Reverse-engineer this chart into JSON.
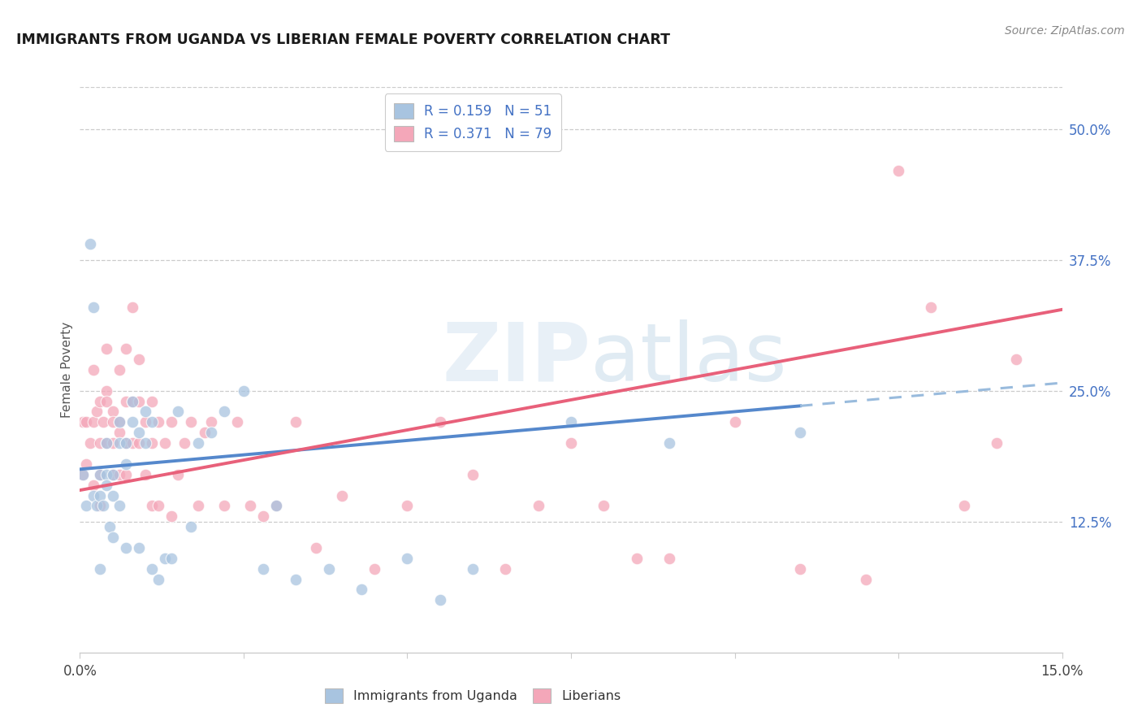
{
  "title": "IMMIGRANTS FROM UGANDA VS LIBERIAN FEMALE POVERTY CORRELATION CHART",
  "source": "Source: ZipAtlas.com",
  "ylabel": "Female Poverty",
  "ytick_labels": [
    "12.5%",
    "25.0%",
    "37.5%",
    "50.0%"
  ],
  "ytick_values": [
    0.125,
    0.25,
    0.375,
    0.5
  ],
  "xlim": [
    0.0,
    0.15
  ],
  "ylim": [
    0.0,
    0.54
  ],
  "color_uganda": "#a8c4e0",
  "color_liberian": "#f4a7b9",
  "color_line_uganda": "#5588cc",
  "color_line_liberian": "#e8607a",
  "color_line_dashed": "#99bbdd",
  "uganda_x": [
    0.0005,
    0.001,
    0.0015,
    0.002,
    0.002,
    0.0025,
    0.003,
    0.003,
    0.003,
    0.0035,
    0.004,
    0.004,
    0.004,
    0.0045,
    0.005,
    0.005,
    0.005,
    0.006,
    0.006,
    0.006,
    0.007,
    0.007,
    0.007,
    0.008,
    0.008,
    0.009,
    0.009,
    0.01,
    0.01,
    0.011,
    0.011,
    0.012,
    0.013,
    0.014,
    0.015,
    0.017,
    0.018,
    0.02,
    0.022,
    0.025,
    0.028,
    0.03,
    0.033,
    0.038,
    0.043,
    0.05,
    0.055,
    0.06,
    0.075,
    0.09,
    0.11
  ],
  "uganda_y": [
    0.17,
    0.14,
    0.39,
    0.33,
    0.15,
    0.14,
    0.17,
    0.15,
    0.08,
    0.14,
    0.2,
    0.17,
    0.16,
    0.12,
    0.17,
    0.15,
    0.11,
    0.22,
    0.2,
    0.14,
    0.2,
    0.18,
    0.1,
    0.24,
    0.22,
    0.21,
    0.1,
    0.23,
    0.2,
    0.22,
    0.08,
    0.07,
    0.09,
    0.09,
    0.23,
    0.12,
    0.2,
    0.21,
    0.23,
    0.25,
    0.08,
    0.14,
    0.07,
    0.08,
    0.06,
    0.09,
    0.05,
    0.08,
    0.22,
    0.2,
    0.21
  ],
  "liberian_x": [
    0.0005,
    0.0005,
    0.001,
    0.001,
    0.0015,
    0.002,
    0.002,
    0.002,
    0.0025,
    0.003,
    0.003,
    0.003,
    0.003,
    0.0035,
    0.004,
    0.004,
    0.004,
    0.004,
    0.005,
    0.005,
    0.005,
    0.005,
    0.006,
    0.006,
    0.006,
    0.006,
    0.007,
    0.007,
    0.007,
    0.007,
    0.008,
    0.008,
    0.008,
    0.009,
    0.009,
    0.009,
    0.01,
    0.01,
    0.011,
    0.011,
    0.011,
    0.012,
    0.012,
    0.013,
    0.014,
    0.014,
    0.015,
    0.016,
    0.017,
    0.018,
    0.019,
    0.02,
    0.022,
    0.024,
    0.026,
    0.028,
    0.03,
    0.033,
    0.036,
    0.04,
    0.045,
    0.05,
    0.055,
    0.06,
    0.065,
    0.07,
    0.075,
    0.08,
    0.085,
    0.09,
    0.1,
    0.11,
    0.12,
    0.125,
    0.13,
    0.135,
    0.14,
    0.143
  ],
  "liberian_y": [
    0.22,
    0.17,
    0.22,
    0.18,
    0.2,
    0.27,
    0.22,
    0.16,
    0.23,
    0.24,
    0.2,
    0.17,
    0.14,
    0.22,
    0.25,
    0.2,
    0.24,
    0.29,
    0.2,
    0.23,
    0.22,
    0.17,
    0.27,
    0.22,
    0.17,
    0.21,
    0.29,
    0.24,
    0.2,
    0.17,
    0.33,
    0.24,
    0.2,
    0.28,
    0.24,
    0.2,
    0.22,
    0.17,
    0.24,
    0.2,
    0.14,
    0.22,
    0.14,
    0.2,
    0.22,
    0.13,
    0.17,
    0.2,
    0.22,
    0.14,
    0.21,
    0.22,
    0.14,
    0.22,
    0.14,
    0.13,
    0.14,
    0.22,
    0.1,
    0.15,
    0.08,
    0.14,
    0.22,
    0.17,
    0.08,
    0.14,
    0.2,
    0.14,
    0.09,
    0.09,
    0.22,
    0.08,
    0.07,
    0.46,
    0.33,
    0.14,
    0.2,
    0.28
  ]
}
